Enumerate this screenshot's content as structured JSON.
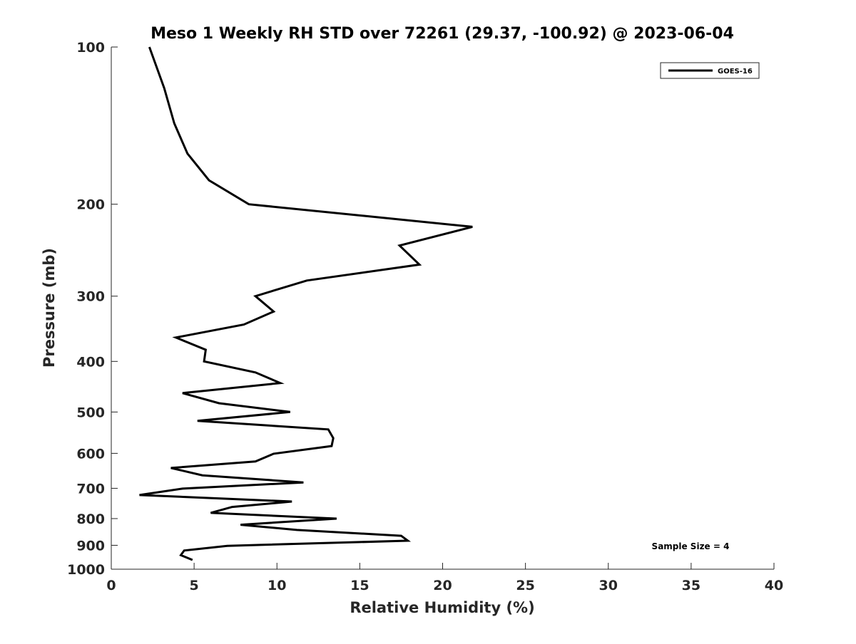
{
  "chart_data": {
    "type": "line",
    "title": "Meso 1 Weekly RH STD over 72261 (29.37, -100.92) @ 2023-06-04",
    "xlabel": "Relative Humidity (%)",
    "ylabel": "Pressure (mb)",
    "xlim": [
      0,
      40
    ],
    "ylim": [
      100,
      1000
    ],
    "yscale": "log",
    "yreversed": true,
    "xticks": [
      0,
      5,
      10,
      15,
      20,
      25,
      30,
      35,
      40
    ],
    "xtick_labels": [
      "0",
      "5",
      "10",
      "15",
      "20",
      "25",
      "30",
      "35",
      "40"
    ],
    "yticks": [
      100,
      200,
      300,
      400,
      500,
      600,
      700,
      800,
      900,
      1000
    ],
    "ytick_labels": [
      "100",
      "200",
      "300",
      "400",
      "500",
      "600",
      "700",
      "800",
      "900",
      "1000"
    ],
    "grid": false,
    "legend_position": "top-right",
    "annotation": "Sample Size = 4",
    "series": [
      {
        "name": "GOES-16",
        "color": "#000000",
        "x": [
          2.3,
          3.2,
          3.8,
          4.6,
          5.9,
          8.3,
          21.8,
          17.4,
          18.6,
          11.8,
          8.7,
          9.8,
          8.0,
          3.9,
          5.7,
          5.6,
          8.7,
          10.2,
          4.3,
          6.5,
          10.8,
          5.2,
          13.1,
          13.4,
          13.3,
          9.8,
          8.7,
          3.6,
          5.5,
          11.6,
          4.3,
          1.7,
          10.9,
          7.3,
          6.0,
          13.6,
          7.8,
          11.2,
          17.5,
          17.9,
          7.0,
          4.4,
          4.2,
          4.9
        ],
        "y": [
          100,
          120,
          140,
          160,
          180,
          200,
          221,
          240,
          261,
          280,
          300,
          321,
          340,
          360,
          380,
          400,
          420,
          440,
          460,
          481,
          500,
          520,
          540,
          561,
          581,
          601,
          622,
          640,
          661,
          682,
          701,
          721,
          742,
          760,
          780,
          800,
          822,
          841,
          863,
          882,
          902,
          921,
          940,
          960
        ]
      }
    ]
  }
}
